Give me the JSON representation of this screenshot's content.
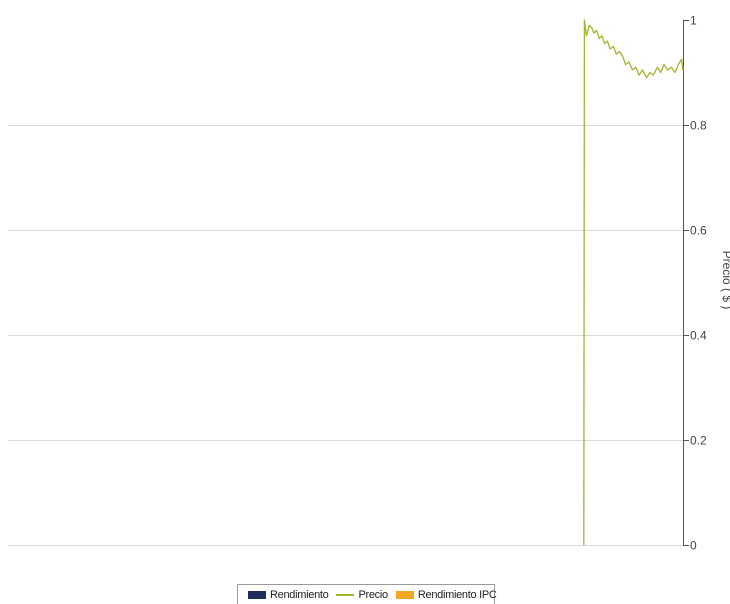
{
  "chart_data": {
    "type": "line",
    "title": "",
    "y_axis": {
      "label": "Precio ( $ )",
      "position": "right",
      "range": [
        0,
        1
      ],
      "ticks": [
        {
          "value": 0,
          "label": "0"
        },
        {
          "value": 0.2,
          "label": "0.2"
        },
        {
          "value": 0.4,
          "label": "0.4"
        },
        {
          "value": 0.6,
          "label": "0.6"
        },
        {
          "value": 0.8,
          "label": "0.8"
        },
        {
          "value": 1,
          "label": "1"
        }
      ]
    },
    "x_axis": {
      "range": [
        0,
        1
      ],
      "labels": []
    },
    "grid": true,
    "legend": {
      "placement": "bottom",
      "entries": [
        {
          "name": "Rendimiento",
          "kind": "box",
          "color": "#1f2d5a"
        },
        {
          "name": "Precio",
          "kind": "line",
          "color": "#a3b52c"
        },
        {
          "name": "Rendimiento IPC",
          "kind": "box",
          "color": "#f5a623"
        }
      ]
    },
    "series": [
      {
        "name": "Precio",
        "color": "#a3b52c",
        "x": [
          0.853,
          0.854,
          0.857,
          0.861,
          0.865,
          0.868,
          0.872,
          0.876,
          0.88,
          0.884,
          0.888,
          0.892,
          0.897,
          0.901,
          0.906,
          0.911,
          0.915,
          0.92,
          0.925,
          0.93,
          0.935,
          0.94,
          0.946,
          0.951,
          0.956,
          0.962,
          0.967,
          0.972,
          0.977,
          0.983,
          0.988,
          0.993,
          0.998,
          1.0
        ],
        "values": [
          0.0,
          1.0,
          0.97,
          0.99,
          0.985,
          0.975,
          0.98,
          0.965,
          0.97,
          0.955,
          0.96,
          0.945,
          0.95,
          0.935,
          0.94,
          0.93,
          0.915,
          0.92,
          0.905,
          0.91,
          0.895,
          0.905,
          0.89,
          0.9,
          0.895,
          0.91,
          0.9,
          0.915,
          0.905,
          0.91,
          0.9,
          0.915,
          0.925,
          0.905
        ]
      }
    ]
  }
}
